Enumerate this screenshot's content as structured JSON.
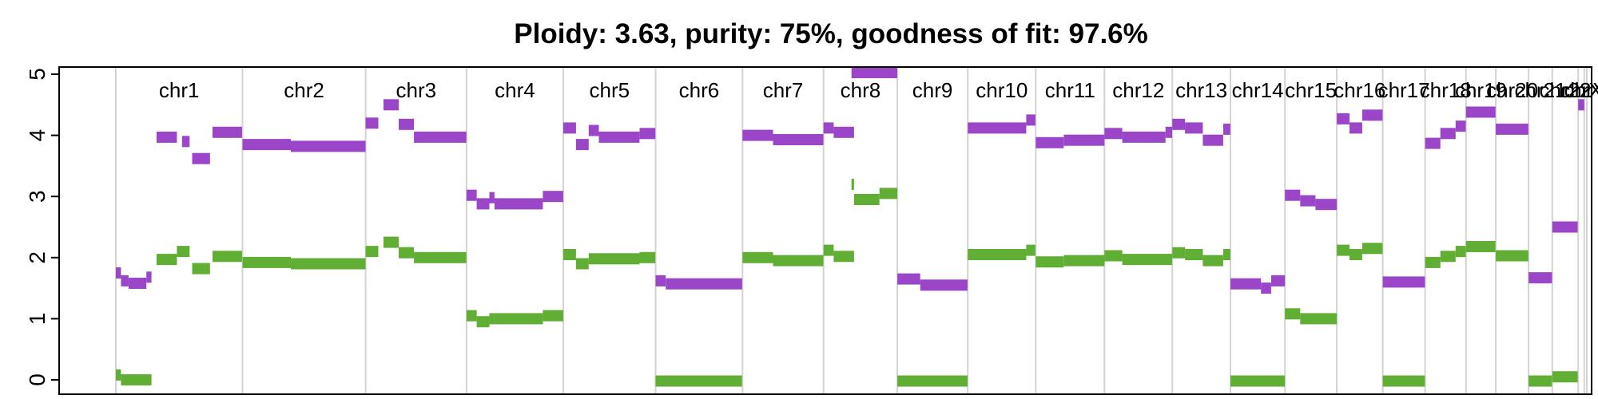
{
  "chart_data": {
    "type": "scatter",
    "title": "Ploidy: 3.63, purity: 75%, goodness of fit: 97.6%",
    "xlabel": "",
    "ylabel": "",
    "ylim": [
      0,
      5
    ],
    "y_ticks": [
      0,
      1,
      2,
      3,
      4,
      5
    ],
    "y_tick_labels": [
      "0",
      "1",
      "2",
      "3",
      "4",
      "5"
    ],
    "grid": true,
    "legend": "none",
    "chromosomes": [
      "chr1",
      "chr2",
      "chr3",
      "chr4",
      "chr5",
      "chr6",
      "chr7",
      "chr8",
      "chr9",
      "chr10",
      "chr11",
      "chr12",
      "chr13",
      "chr14",
      "chr15",
      "chr16",
      "chr17",
      "chr18",
      "chr19",
      "chr20",
      "chr21",
      "chr22",
      "chrX",
      "chrY"
    ],
    "chromosome_lengths_mb": [
      248.9,
      242.2,
      198.3,
      190.2,
      181.5,
      170.8,
      159.3,
      145.1,
      138.4,
      133.8,
      135.1,
      133.3,
      114.4,
      107.0,
      102.0,
      90.3,
      83.3,
      80.4,
      58.6,
      64.4,
      46.7,
      50.8,
      12.0,
      5.0
    ],
    "colors": {
      "major": "#9B45C9",
      "minor": "#61AE34",
      "grid": "#D3D3D3",
      "axis": "#000000",
      "background": "#FFFFFF"
    },
    "series": [
      {
        "name": "major",
        "color": "#9B45C9",
        "points": [
          {
            "chr": "chr1",
            "start": 0,
            "end": 10,
            "y": 1.75
          },
          {
            "chr": "chr1",
            "start": 10,
            "end": 25,
            "y": 1.62
          },
          {
            "chr": "chr1",
            "start": 25,
            "end": 60,
            "y": 1.58
          },
          {
            "chr": "chr1",
            "start": 60,
            "end": 70,
            "y": 1.68
          },
          {
            "chr": "chr1",
            "start": 80,
            "end": 120,
            "y": 3.97
          },
          {
            "chr": "chr1",
            "start": 130,
            "end": 145,
            "y": 3.9
          },
          {
            "chr": "chr1",
            "start": 150,
            "end": 185,
            "y": 3.62
          },
          {
            "chr": "chr1",
            "start": 190,
            "end": 248,
            "y": 4.05
          },
          {
            "chr": "chr2",
            "start": 0,
            "end": 95,
            "y": 3.85
          },
          {
            "chr": "chr2",
            "start": 95,
            "end": 242,
            "y": 3.82
          },
          {
            "chr": "chr3",
            "start": 0,
            "end": 25,
            "y": 4.2
          },
          {
            "chr": "chr3",
            "start": 35,
            "end": 65,
            "y": 4.5
          },
          {
            "chr": "chr3",
            "start": 65,
            "end": 95,
            "y": 4.18
          },
          {
            "chr": "chr3",
            "start": 95,
            "end": 198,
            "y": 3.97
          },
          {
            "chr": "chr4",
            "start": 0,
            "end": 20,
            "y": 3.02
          },
          {
            "chr": "chr4",
            "start": 20,
            "end": 45,
            "y": 2.88
          },
          {
            "chr": "chr4",
            "start": 45,
            "end": 55,
            "y": 2.98
          },
          {
            "chr": "chr4",
            "start": 55,
            "end": 150,
            "y": 2.88
          },
          {
            "chr": "chr4",
            "start": 150,
            "end": 190,
            "y": 3.0
          },
          {
            "chr": "chr5",
            "start": 0,
            "end": 25,
            "y": 4.12
          },
          {
            "chr": "chr5",
            "start": 25,
            "end": 50,
            "y": 3.85
          },
          {
            "chr": "chr5",
            "start": 50,
            "end": 70,
            "y": 4.08
          },
          {
            "chr": "chr5",
            "start": 70,
            "end": 150,
            "y": 3.97
          },
          {
            "chr": "chr5",
            "start": 150,
            "end": 181,
            "y": 4.03
          },
          {
            "chr": "chr6",
            "start": 0,
            "end": 20,
            "y": 1.62
          },
          {
            "chr": "chr6",
            "start": 20,
            "end": 170,
            "y": 1.57
          },
          {
            "chr": "chr7",
            "start": 0,
            "end": 60,
            "y": 4.0
          },
          {
            "chr": "chr7",
            "start": 60,
            "end": 159,
            "y": 3.93
          },
          {
            "chr": "chr8",
            "start": 0,
            "end": 20,
            "y": 4.12
          },
          {
            "chr": "chr8",
            "start": 20,
            "end": 60,
            "y": 4.05
          },
          {
            "chr": "chr8",
            "start": 55,
            "end": 145,
            "y": 5.1
          },
          {
            "chr": "chr9",
            "start": 0,
            "end": 45,
            "y": 1.65
          },
          {
            "chr": "chr9",
            "start": 45,
            "end": 138,
            "y": 1.55
          },
          {
            "chr": "chr10",
            "start": 0,
            "end": 115,
            "y": 4.12
          },
          {
            "chr": "chr10",
            "start": 115,
            "end": 133,
            "y": 4.25
          },
          {
            "chr": "chr11",
            "start": 0,
            "end": 55,
            "y": 3.88
          },
          {
            "chr": "chr11",
            "start": 55,
            "end": 135,
            "y": 3.92
          },
          {
            "chr": "chr12",
            "start": 0,
            "end": 35,
            "y": 4.03
          },
          {
            "chr": "chr12",
            "start": 35,
            "end": 120,
            "y": 3.97
          },
          {
            "chr": "chr12",
            "start": 120,
            "end": 133,
            "y": 4.05
          },
          {
            "chr": "chr13",
            "start": 0,
            "end": 25,
            "y": 4.18
          },
          {
            "chr": "chr13",
            "start": 25,
            "end": 60,
            "y": 4.12
          },
          {
            "chr": "chr13",
            "start": 60,
            "end": 100,
            "y": 3.92
          },
          {
            "chr": "chr13",
            "start": 100,
            "end": 114,
            "y": 4.1
          },
          {
            "chr": "chr14",
            "start": 0,
            "end": 60,
            "y": 1.57
          },
          {
            "chr": "chr14",
            "start": 60,
            "end": 80,
            "y": 1.5
          },
          {
            "chr": "chr14",
            "start": 80,
            "end": 107,
            "y": 1.62
          },
          {
            "chr": "chr15",
            "start": 0,
            "end": 30,
            "y": 3.02
          },
          {
            "chr": "chr15",
            "start": 30,
            "end": 60,
            "y": 2.93
          },
          {
            "chr": "chr15",
            "start": 60,
            "end": 102,
            "y": 2.87
          },
          {
            "chr": "chr16",
            "start": 0,
            "end": 25,
            "y": 4.27
          },
          {
            "chr": "chr16",
            "start": 25,
            "end": 50,
            "y": 4.12
          },
          {
            "chr": "chr16",
            "start": 50,
            "end": 90,
            "y": 4.33
          },
          {
            "chr": "chr17",
            "start": 0,
            "end": 83,
            "y": 1.6
          },
          {
            "chr": "chr18",
            "start": 0,
            "end": 30,
            "y": 3.87
          },
          {
            "chr": "chr18",
            "start": 30,
            "end": 60,
            "y": 4.03
          },
          {
            "chr": "chr18",
            "start": 60,
            "end": 80,
            "y": 4.15
          },
          {
            "chr": "chr19",
            "start": 0,
            "end": 58,
            "y": 4.38
          },
          {
            "chr": "chr20",
            "start": 0,
            "end": 64,
            "y": 4.1
          },
          {
            "chr": "chr21",
            "start": 0,
            "end": 46,
            "y": 1.67
          },
          {
            "chr": "chr22",
            "start": 0,
            "end": 50,
            "y": 2.5
          },
          {
            "chr": "chrX",
            "start": 0,
            "end": 12,
            "y": 4.5
          }
        ]
      },
      {
        "name": "minor",
        "color": "#61AE34",
        "points": [
          {
            "chr": "chr1",
            "start": 0,
            "end": 10,
            "y": 0.08
          },
          {
            "chr": "chr1",
            "start": 10,
            "end": 70,
            "y": 0.0
          },
          {
            "chr": "chr1",
            "start": 80,
            "end": 120,
            "y": 1.97
          },
          {
            "chr": "chr1",
            "start": 120,
            "end": 145,
            "y": 2.1
          },
          {
            "chr": "chr1",
            "start": 150,
            "end": 185,
            "y": 1.82
          },
          {
            "chr": "chr1",
            "start": 190,
            "end": 248,
            "y": 2.02
          },
          {
            "chr": "chr2",
            "start": 0,
            "end": 95,
            "y": 1.92
          },
          {
            "chr": "chr2",
            "start": 95,
            "end": 242,
            "y": 1.9
          },
          {
            "chr": "chr3",
            "start": 0,
            "end": 25,
            "y": 2.1
          },
          {
            "chr": "chr3",
            "start": 35,
            "end": 65,
            "y": 2.25
          },
          {
            "chr": "chr3",
            "start": 65,
            "end": 95,
            "y": 2.08
          },
          {
            "chr": "chr3",
            "start": 95,
            "end": 198,
            "y": 2.0
          },
          {
            "chr": "chr4",
            "start": 0,
            "end": 20,
            "y": 1.05
          },
          {
            "chr": "chr4",
            "start": 20,
            "end": 45,
            "y": 0.95
          },
          {
            "chr": "chr4",
            "start": 45,
            "end": 55,
            "y": 1.0
          },
          {
            "chr": "chr4",
            "start": 55,
            "end": 150,
            "y": 1.0
          },
          {
            "chr": "chr4",
            "start": 150,
            "end": 190,
            "y": 1.05
          },
          {
            "chr": "chr5",
            "start": 0,
            "end": 25,
            "y": 2.05
          },
          {
            "chr": "chr5",
            "start": 25,
            "end": 50,
            "y": 1.9
          },
          {
            "chr": "chr5",
            "start": 50,
            "end": 150,
            "y": 1.98
          },
          {
            "chr": "chr5",
            "start": 150,
            "end": 181,
            "y": 2.0
          },
          {
            "chr": "chr6",
            "start": 0,
            "end": 170,
            "y": -0.02
          },
          {
            "chr": "chr7",
            "start": 0,
            "end": 60,
            "y": 2.0
          },
          {
            "chr": "chr7",
            "start": 60,
            "end": 159,
            "y": 1.95
          },
          {
            "chr": "chr8",
            "start": 0,
            "end": 20,
            "y": 2.12
          },
          {
            "chr": "chr8",
            "start": 20,
            "end": 60,
            "y": 2.02
          },
          {
            "chr": "chr8",
            "start": 55,
            "end": 60,
            "y": 3.2
          },
          {
            "chr": "chr8",
            "start": 60,
            "end": 110,
            "y": 2.95
          },
          {
            "chr": "chr8",
            "start": 110,
            "end": 145,
            "y": 3.05
          },
          {
            "chr": "chr9",
            "start": 0,
            "end": 138,
            "y": -0.02
          },
          {
            "chr": "chr10",
            "start": 0,
            "end": 115,
            "y": 2.05
          },
          {
            "chr": "chr10",
            "start": 115,
            "end": 133,
            "y": 2.12
          },
          {
            "chr": "chr11",
            "start": 0,
            "end": 55,
            "y": 1.93
          },
          {
            "chr": "chr11",
            "start": 55,
            "end": 135,
            "y": 1.95
          },
          {
            "chr": "chr12",
            "start": 0,
            "end": 35,
            "y": 2.03
          },
          {
            "chr": "chr12",
            "start": 35,
            "end": 133,
            "y": 1.97
          },
          {
            "chr": "chr13",
            "start": 0,
            "end": 25,
            "y": 2.08
          },
          {
            "chr": "chr13",
            "start": 25,
            "end": 60,
            "y": 2.05
          },
          {
            "chr": "chr13",
            "start": 60,
            "end": 100,
            "y": 1.95
          },
          {
            "chr": "chr13",
            "start": 100,
            "end": 114,
            "y": 2.05
          },
          {
            "chr": "chr14",
            "start": 0,
            "end": 107,
            "y": -0.02
          },
          {
            "chr": "chr15",
            "start": 0,
            "end": 30,
            "y": 1.08
          },
          {
            "chr": "chr15",
            "start": 30,
            "end": 102,
            "y": 1.0
          },
          {
            "chr": "chr16",
            "start": 0,
            "end": 25,
            "y": 2.12
          },
          {
            "chr": "chr16",
            "start": 25,
            "end": 50,
            "y": 2.05
          },
          {
            "chr": "chr16",
            "start": 50,
            "end": 90,
            "y": 2.15
          },
          {
            "chr": "chr17",
            "start": 0,
            "end": 83,
            "y": -0.02
          },
          {
            "chr": "chr18",
            "start": 0,
            "end": 30,
            "y": 1.92
          },
          {
            "chr": "chr18",
            "start": 30,
            "end": 60,
            "y": 2.02
          },
          {
            "chr": "chr18",
            "start": 60,
            "end": 80,
            "y": 2.1
          },
          {
            "chr": "chr19",
            "start": 0,
            "end": 58,
            "y": 2.18
          },
          {
            "chr": "chr20",
            "start": 0,
            "end": 64,
            "y": 2.03
          },
          {
            "chr": "chr21",
            "start": 0,
            "end": 46,
            "y": -0.02
          },
          {
            "chr": "chr22",
            "start": 0,
            "end": 50,
            "y": 0.05
          }
        ]
      }
    ]
  }
}
